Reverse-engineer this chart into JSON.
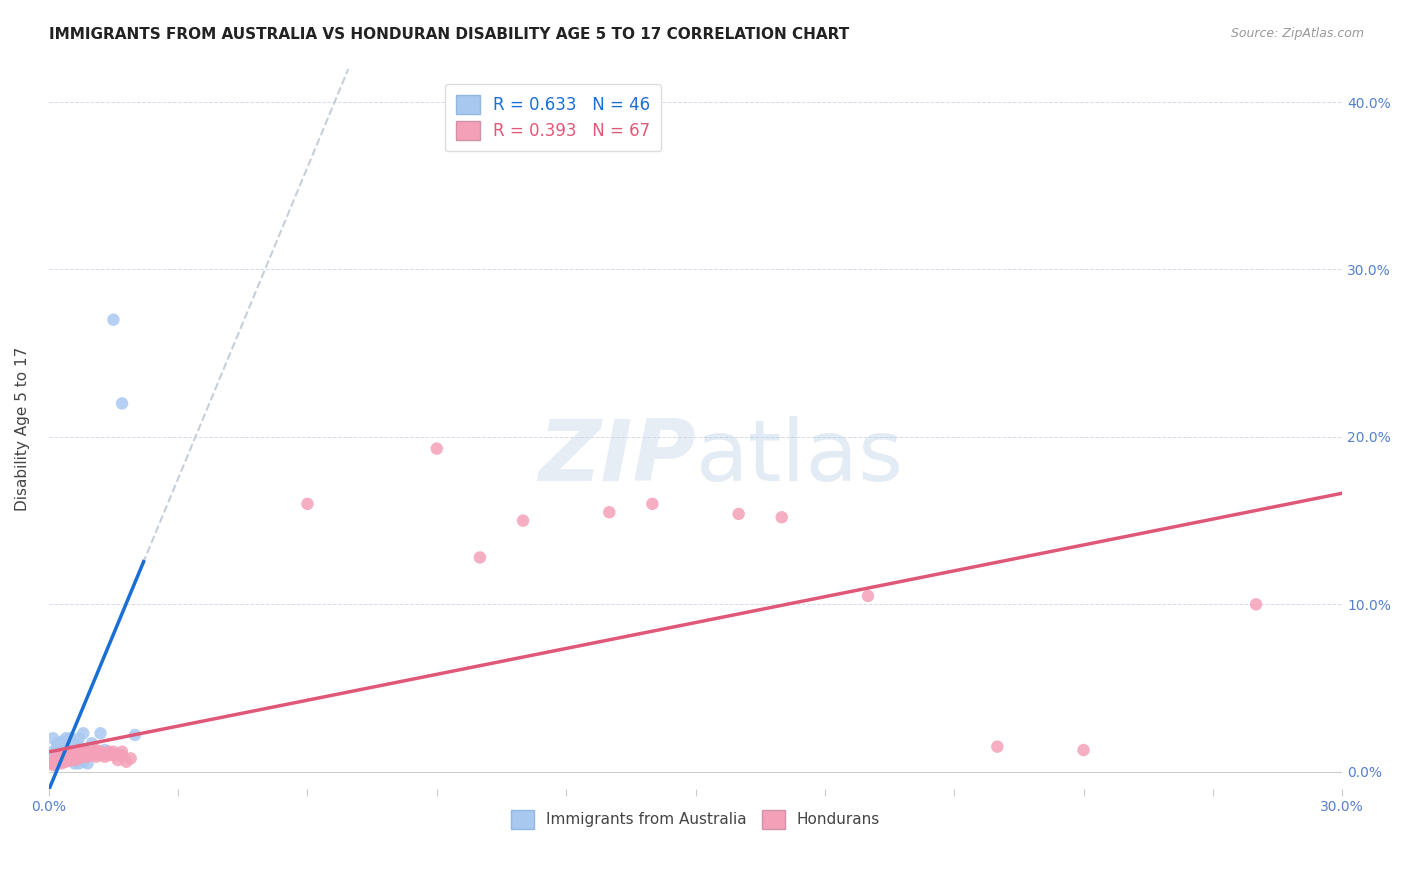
{
  "title": "IMMIGRANTS FROM AUSTRALIA VS HONDURAN DISABILITY AGE 5 TO 17 CORRELATION CHART",
  "source": "Source: ZipAtlas.com",
  "ylabel": "Disability Age 5 to 17",
  "xlim": [
    0,
    0.3
  ],
  "ylim": [
    -0.01,
    0.42
  ],
  "australia_R": 0.633,
  "australia_N": 46,
  "honduras_R": 0.393,
  "honduras_N": 67,
  "australia_color": "#a8c8f0",
  "honduras_color": "#f4a0b8",
  "australia_line_color": "#1a6fd4",
  "honduras_line_color": "#e05878",
  "trend_line_color": "#b8c4d0",
  "watermark": "ZIPatlas",
  "legend_australia": "Immigrants from Australia",
  "legend_honduras": "Hondurans",
  "australia_points": [
    [
      0.001,
      0.005
    ],
    [
      0.001,
      0.007
    ],
    [
      0.001,
      0.012
    ],
    [
      0.001,
      0.02
    ],
    [
      0.002,
      0.005
    ],
    [
      0.002,
      0.007
    ],
    [
      0.002,
      0.009
    ],
    [
      0.002,
      0.01
    ],
    [
      0.002,
      0.013
    ],
    [
      0.002,
      0.015
    ],
    [
      0.002,
      0.017
    ],
    [
      0.003,
      0.006
    ],
    [
      0.003,
      0.008
    ],
    [
      0.003,
      0.01
    ],
    [
      0.003,
      0.012
    ],
    [
      0.003,
      0.013
    ],
    [
      0.003,
      0.015
    ],
    [
      0.003,
      0.017
    ],
    [
      0.003,
      0.018
    ],
    [
      0.004,
      0.008
    ],
    [
      0.004,
      0.01
    ],
    [
      0.004,
      0.014
    ],
    [
      0.004,
      0.016
    ],
    [
      0.004,
      0.018
    ],
    [
      0.004,
      0.02
    ],
    [
      0.005,
      0.01
    ],
    [
      0.005,
      0.015
    ],
    [
      0.005,
      0.017
    ],
    [
      0.005,
      0.02
    ],
    [
      0.006,
      0.005
    ],
    [
      0.006,
      0.012
    ],
    [
      0.006,
      0.017
    ],
    [
      0.007,
      0.005
    ],
    [
      0.007,
      0.01
    ],
    [
      0.007,
      0.015
    ],
    [
      0.007,
      0.02
    ],
    [
      0.008,
      0.006
    ],
    [
      0.008,
      0.013
    ],
    [
      0.008,
      0.023
    ],
    [
      0.009,
      0.005
    ],
    [
      0.01,
      0.017
    ],
    [
      0.012,
      0.023
    ],
    [
      0.013,
      0.013
    ],
    [
      0.015,
      0.27
    ],
    [
      0.017,
      0.22
    ],
    [
      0.02,
      0.022
    ]
  ],
  "honduras_points": [
    [
      0.001,
      0.004
    ],
    [
      0.001,
      0.005
    ],
    [
      0.001,
      0.007
    ],
    [
      0.002,
      0.005
    ],
    [
      0.002,
      0.006
    ],
    [
      0.002,
      0.008
    ],
    [
      0.002,
      0.009
    ],
    [
      0.003,
      0.005
    ],
    [
      0.003,
      0.007
    ],
    [
      0.003,
      0.008
    ],
    [
      0.003,
      0.009
    ],
    [
      0.003,
      0.01
    ],
    [
      0.004,
      0.006
    ],
    [
      0.004,
      0.007
    ],
    [
      0.004,
      0.009
    ],
    [
      0.004,
      0.01
    ],
    [
      0.004,
      0.011
    ],
    [
      0.005,
      0.007
    ],
    [
      0.005,
      0.008
    ],
    [
      0.005,
      0.01
    ],
    [
      0.005,
      0.011
    ],
    [
      0.005,
      0.012
    ],
    [
      0.006,
      0.007
    ],
    [
      0.006,
      0.009
    ],
    [
      0.006,
      0.011
    ],
    [
      0.007,
      0.008
    ],
    [
      0.007,
      0.01
    ],
    [
      0.007,
      0.011
    ],
    [
      0.007,
      0.013
    ],
    [
      0.008,
      0.009
    ],
    [
      0.008,
      0.01
    ],
    [
      0.008,
      0.012
    ],
    [
      0.009,
      0.009
    ],
    [
      0.009,
      0.01
    ],
    [
      0.009,
      0.012
    ],
    [
      0.01,
      0.01
    ],
    [
      0.01,
      0.011
    ],
    [
      0.01,
      0.012
    ],
    [
      0.011,
      0.009
    ],
    [
      0.011,
      0.011
    ],
    [
      0.011,
      0.013
    ],
    [
      0.012,
      0.01
    ],
    [
      0.012,
      0.012
    ],
    [
      0.013,
      0.009
    ],
    [
      0.013,
      0.011
    ],
    [
      0.014,
      0.01
    ],
    [
      0.014,
      0.012
    ],
    [
      0.015,
      0.01
    ],
    [
      0.015,
      0.012
    ],
    [
      0.016,
      0.007
    ],
    [
      0.016,
      0.01
    ],
    [
      0.017,
      0.01
    ],
    [
      0.017,
      0.012
    ],
    [
      0.018,
      0.006
    ],
    [
      0.019,
      0.008
    ],
    [
      0.06,
      0.16
    ],
    [
      0.09,
      0.193
    ],
    [
      0.1,
      0.128
    ],
    [
      0.11,
      0.15
    ],
    [
      0.13,
      0.155
    ],
    [
      0.14,
      0.16
    ],
    [
      0.16,
      0.154
    ],
    [
      0.17,
      0.152
    ],
    [
      0.19,
      0.105
    ],
    [
      0.22,
      0.015
    ],
    [
      0.24,
      0.013
    ],
    [
      0.28,
      0.1
    ]
  ]
}
